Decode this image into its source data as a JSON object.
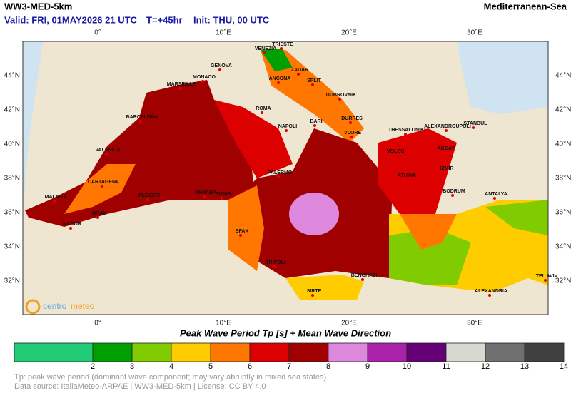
{
  "header": {
    "title": "WW3-MED-5km",
    "region": "Mediterranean-Sea",
    "valid": "Valid: FRI, 01MAY2026 21 UTC",
    "step": "T=+45hr",
    "init": "Init: THU, 00 UTC"
  },
  "map": {
    "lon_labels": [
      "0°",
      "10°E",
      "20°E",
      "30°E"
    ],
    "lat_labels": [
      "44°N",
      "42°N",
      "40°N",
      "38°N",
      "36°N",
      "34°N",
      "32°N"
    ],
    "cities": [
      "TRIESTE",
      "VENEZIA",
      "ZADAR",
      "GENOVA",
      "MONACO",
      "ANCONA",
      "SPLIT",
      "MARSEILLE",
      "DUBROVNIK",
      "ROMA",
      "BARCELONA",
      "DURRES",
      "BARI",
      "NAPOLI",
      "VLORE",
      "THESSALONIKI",
      "ALEXANDROUPOLI",
      "ISTANBUL",
      "VALENCIA",
      "VOLOS",
      "AKCAY",
      "IZMIR",
      "PALERMO",
      "ATHINA",
      "CARTAGENA",
      "BODRUM",
      "ALGIERS",
      "ANNABA",
      "TUNIS",
      "ANTALYA",
      "MALAGA",
      "ORAN",
      "NADOR",
      "SFAX",
      "TRIPOLI",
      "TEL AVIV",
      "BENGHAZI",
      "SIRTE",
      "ALEXANDRIA"
    ],
    "logo": [
      "centro",
      "meteo"
    ]
  },
  "legend": {
    "title": "Peak Wave Period Tp [s]  +  Mean Wave Direction",
    "bounds": [
      2,
      3,
      4,
      5,
      6,
      7,
      8,
      9,
      10,
      11,
      12,
      13,
      14
    ],
    "colors": [
      "#22cc77",
      "#00a000",
      "#80cc00",
      "#ffcc00",
      "#ff7700",
      "#dd0000",
      "#a00000",
      "#dd88dd",
      "#aa22aa",
      "#660077",
      "#d8d8d0",
      "#707070",
      "#404040"
    ]
  },
  "footer": [
    "Tp: peak wave period (dominant wave component; may vary abruptly in mixed sea states)",
    "Data source: ItaliaMeteo-ARPAE | WW3-MED-5km | License: CC BY 4.0"
  ]
}
